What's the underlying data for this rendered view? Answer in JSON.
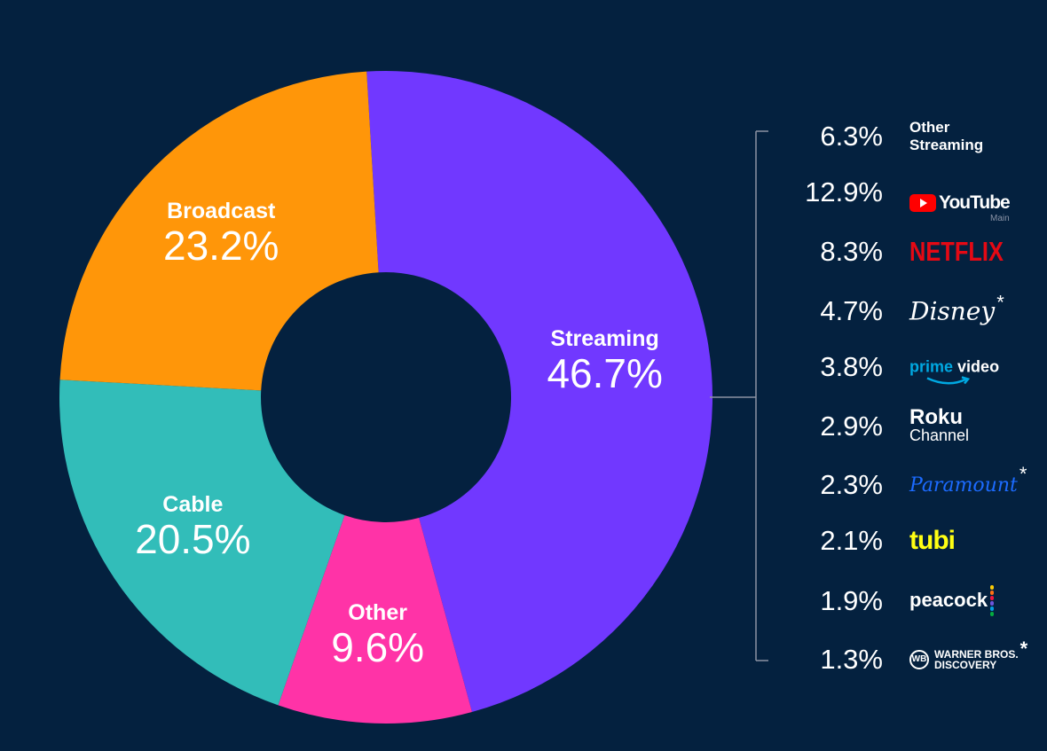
{
  "colors": {
    "background": "#04213f",
    "streaming": "#7138ff",
    "broadcast": "#ff9609",
    "cable": "#32bdb9",
    "other": "#ff33a7",
    "bracket": "#8c93a3",
    "youtube_red": "#ff0000",
    "netflix_red": "#e50914",
    "prime_blue": "#00a8e1",
    "paramount_blue": "#1c6bff",
    "tubi_yellow": "#ffff13",
    "text": "#ffffff"
  },
  "chart_data": [
    {
      "type": "pie",
      "variant": "donut",
      "title": "",
      "categories": [
        "Streaming",
        "Other",
        "Cable",
        "Broadcast"
      ],
      "values": [
        46.7,
        9.6,
        20.5,
        23.2
      ],
      "value_labels": [
        "46.7%",
        "9.6%",
        "20.5%",
        "23.2%"
      ],
      "unit": "%"
    },
    {
      "type": "table",
      "parent_category": "Streaming",
      "categories": [
        "Other Streaming",
        "YouTube Main",
        "Netflix",
        "Disney*",
        "Prime Video",
        "Roku Channel",
        "Paramount*",
        "Tubi",
        "Peacock",
        "Warner Bros. Discovery*"
      ],
      "values": [
        6.3,
        12.9,
        8.3,
        4.7,
        3.8,
        2.9,
        2.3,
        2.1,
        1.9,
        1.3
      ],
      "value_labels": [
        "6.3%",
        "12.9%",
        "8.3%",
        "4.7%",
        "3.8%",
        "2.9%",
        "2.3%",
        "2.1%",
        "1.9%",
        "1.3%"
      ],
      "unit": "%"
    }
  ],
  "brands": {
    "other_streaming_line1": "Other",
    "other_streaming_line2": "Streaming",
    "youtube": "YouTube",
    "youtube_sub": "Main",
    "netflix": "NETFLIX",
    "disney": "Disney",
    "prime_word1": "prime",
    "prime_word2": "video",
    "roku_top": "Roku",
    "roku_bottom": "Channel",
    "paramount": "Paramount",
    "tubi": "tubi",
    "peacock": "peacock",
    "wbd_logo": "WB",
    "wbd_line1": "WARNER BROS.",
    "wbd_line2": "DISCOVERY",
    "asterisk": "*"
  },
  "icons": {
    "youtube": "youtube-play-icon",
    "prime": "prime-smile-icon",
    "peacock": "peacock-dots-icon",
    "wbd": "wbd-shield-icon"
  }
}
